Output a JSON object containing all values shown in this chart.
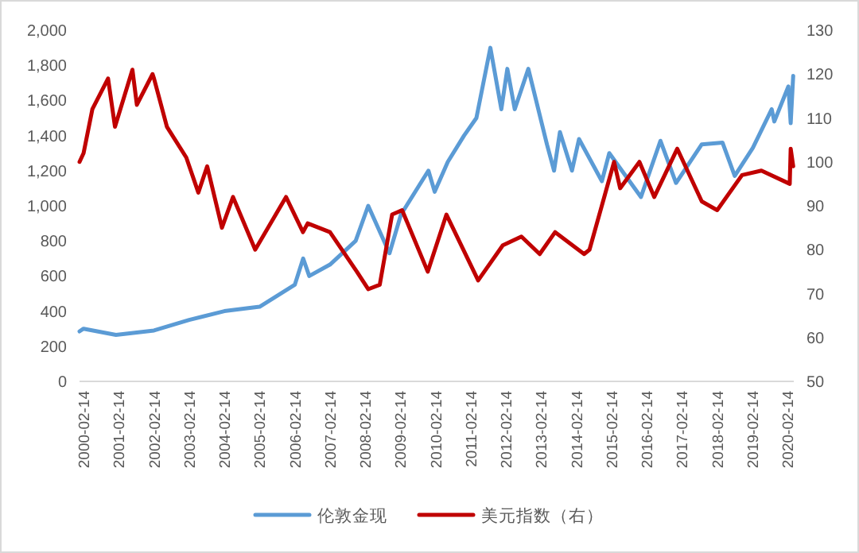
{
  "chart_data": {
    "type": "line",
    "series": [
      {
        "name": "伦敦金现",
        "color": "#5b9bd5",
        "x": [
          "2000-01-03",
          "2000-02-14",
          "2001-01-15",
          "2002-02-14",
          "2003-02-14",
          "2004-02-14",
          "2005-02-14",
          "2006-02-14",
          "2006-05-12",
          "2006-07-14",
          "2007-02-14",
          "2007-11-08",
          "2008-03-17",
          "2008-10-24",
          "2009-02-20",
          "2009-12-02",
          "2010-02-05",
          "2010-06-21",
          "2010-12-07",
          "2011-04-14",
          "2011-09-06",
          "2011-12-29",
          "2012-02-29",
          "2012-05-16",
          "2012-10-04",
          "2013-04-15",
          "2013-06-28",
          "2013-08-28",
          "2013-12-31",
          "2014-03-14",
          "2014-11-06",
          "2015-01-22",
          "2015-12-17",
          "2016-07-06",
          "2016-12-15",
          "2017-09-08",
          "2018-04-11",
          "2018-08-16",
          "2019-02-20",
          "2019-09-04",
          "2019-10-01",
          "2020-02-24",
          "2020-03-19",
          "2020-04-14"
        ],
        "values": [
          285,
          300,
          265,
          290,
          350,
          400,
          425,
          550,
          700,
          600,
          665,
          800,
          1000,
          730,
          950,
          1200,
          1080,
          1250,
          1400,
          1500,
          1900,
          1550,
          1780,
          1550,
          1780,
          1350,
          1200,
          1420,
          1200,
          1380,
          1140,
          1300,
          1050,
          1370,
          1130,
          1350,
          1360,
          1170,
          1330,
          1550,
          1480,
          1680,
          1470,
          1740
        ]
      },
      {
        "name": "美元指数（右）",
        "color": "#c00000",
        "axis": "y2",
        "x": [
          "2000-01-03",
          "2000-02-14",
          "2000-05-15",
          "2000-10-25",
          "2001-01-05",
          "2001-07-05",
          "2001-08-20",
          "2002-01-30",
          "2002-02-14",
          "2002-06-28",
          "2003-01-15",
          "2003-05-20",
          "2003-08-20",
          "2004-01-20",
          "2004-05-14",
          "2004-12-30",
          "2005-11-15",
          "2006-05-10",
          "2006-06-28",
          "2007-02-14",
          "2007-11-20",
          "2008-03-17",
          "2008-07-15",
          "2008-11-20",
          "2009-03-04",
          "2009-11-25",
          "2010-06-07",
          "2011-05-02",
          "2012-01-13",
          "2012-07-24",
          "2013-01-30",
          "2013-07-09",
          "2014-05-06",
          "2014-07-01",
          "2015-03-13",
          "2015-05-15",
          "2015-12-01",
          "2016-05-03",
          "2016-12-28",
          "2017-09-08",
          "2018-02-15",
          "2018-10-31",
          "2019-05-20",
          "2020-03-09",
          "2020-03-19",
          "2020-04-14"
        ],
        "values": [
          100,
          102,
          112,
          119,
          108,
          121,
          113,
          120,
          119,
          108,
          101,
          93,
          99,
          85,
          92,
          80,
          92,
          84,
          86,
          84,
          75,
          71,
          72,
          88,
          89,
          75,
          88,
          73,
          81,
          83,
          79,
          84,
          79,
          80,
          100,
          94,
          100,
          92,
          103,
          91,
          89,
          97,
          98,
          95,
          103,
          99
        ]
      }
    ],
    "xlim": [
      "2000-01-03",
      "2020-04-20"
    ],
    "xticks": [
      "2000-02-14",
      "2001-02-14",
      "2002-02-14",
      "2003-02-14",
      "2004-02-14",
      "2005-02-14",
      "2006-02-14",
      "2007-02-14",
      "2008-02-14",
      "2009-02-14",
      "2010-02-14",
      "2011-02-14",
      "2012-02-14",
      "2013-02-14",
      "2014-02-14",
      "2015-02-14",
      "2016-02-14",
      "2017-02-14",
      "2018-02-14",
      "2019-02-14",
      "2020-02-14"
    ],
    "ylim": [
      0,
      2000
    ],
    "yticks": [
      0,
      200,
      400,
      600,
      800,
      {
        "value": 1000,
        "label": "1,000"
      },
      {
        "value": 1200,
        "label": "1,200"
      },
      {
        "value": 1400,
        "label": "1,400"
      },
      {
        "value": 1600,
        "label": "1,600"
      },
      {
        "value": 1800,
        "label": "1,800"
      },
      {
        "value": 2000,
        "label": "2,000"
      }
    ],
    "y2lim": [
      50,
      130
    ],
    "y2ticks": [
      50,
      60,
      70,
      80,
      90,
      100,
      110,
      120,
      130
    ],
    "legend": "bottom",
    "grid": false
  }
}
